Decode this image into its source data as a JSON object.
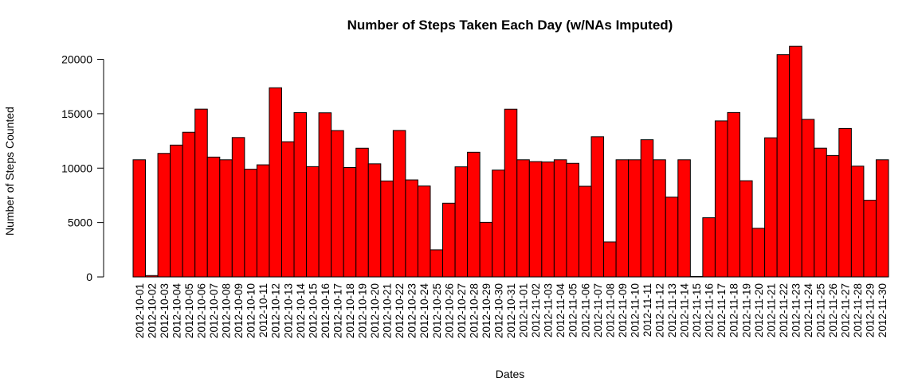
{
  "chart_data": {
    "type": "bar",
    "title": "Number of Steps Taken Each Day (w/NAs Imputed)",
    "xlabel": "Dates",
    "ylabel": "Number of Steps Counted",
    "ylim": [
      0,
      21500
    ],
    "yticks": [
      0,
      5000,
      10000,
      15000,
      20000
    ],
    "bar_color": "#ff0000",
    "border_color": "#000000",
    "grid": false,
    "categories": [
      "2012-10-01",
      "2012-10-02",
      "2012-10-03",
      "2012-10-04",
      "2012-10-05",
      "2012-10-06",
      "2012-10-07",
      "2012-10-08",
      "2012-10-09",
      "2012-10-10",
      "2012-10-11",
      "2012-10-12",
      "2012-10-13",
      "2012-10-14",
      "2012-10-15",
      "2012-10-16",
      "2012-10-17",
      "2012-10-18",
      "2012-10-19",
      "2012-10-20",
      "2012-10-21",
      "2012-10-22",
      "2012-10-23",
      "2012-10-24",
      "2012-10-25",
      "2012-10-26",
      "2012-10-27",
      "2012-10-28",
      "2012-10-29",
      "2012-10-30",
      "2012-10-31",
      "2012-11-01",
      "2012-11-02",
      "2012-11-03",
      "2012-11-04",
      "2012-11-05",
      "2012-11-06",
      "2012-11-07",
      "2012-11-08",
      "2012-11-09",
      "2012-11-10",
      "2012-11-11",
      "2012-11-12",
      "2012-11-13",
      "2012-11-14",
      "2012-11-15",
      "2012-11-16",
      "2012-11-17",
      "2012-11-18",
      "2012-11-19",
      "2012-11-20",
      "2012-11-21",
      "2012-11-22",
      "2012-11-23",
      "2012-11-24",
      "2012-11-25",
      "2012-11-26",
      "2012-11-27",
      "2012-11-28",
      "2012-11-29",
      "2012-11-30"
    ],
    "values": [
      10766,
      126,
      11352,
      12116,
      13294,
      15420,
      11015,
      10766,
      12811,
      9900,
      10304,
      17382,
      12426,
      15098,
      10139,
      15084,
      13452,
      10056,
      11829,
      10395,
      8821,
      13460,
      8918,
      8355,
      2492,
      6778,
      10119,
      11458,
      5018,
      9819,
      15414,
      10766,
      10600,
      10571,
      10766,
      10439,
      8334,
      12883,
      3219,
      10766,
      10766,
      12608,
      10765,
      7336,
      10766,
      41,
      5441,
      14339,
      15110,
      8841,
      4472,
      12787,
      20427,
      21194,
      14478,
      11834,
      11162,
      13646,
      10183,
      7047,
      10766
    ]
  }
}
